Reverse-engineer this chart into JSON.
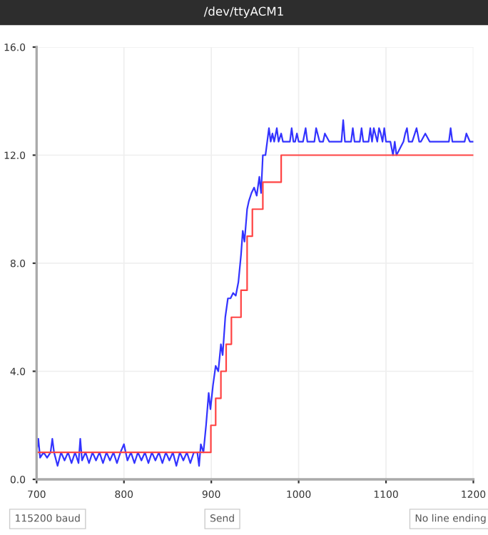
{
  "chart_data": {
    "type": "line",
    "title": "/dev/ttyACM1",
    "xlim": [
      700,
      1200
    ],
    "ylim": [
      0,
      16
    ],
    "xticks": [
      700,
      800,
      900,
      1000,
      1100,
      1200
    ],
    "yticks": [
      {
        "value": 0,
        "label": "0.0"
      },
      {
        "value": 4,
        "label": "4.0"
      },
      {
        "value": 8,
        "label": "8.0"
      },
      {
        "value": 12,
        "label": "12.0"
      },
      {
        "value": 16,
        "label": "16.0"
      }
    ],
    "grid": true,
    "marker": "none",
    "line_style": "solid",
    "annotations": [
      "115200 baud",
      "Send",
      "No line ending"
    ],
    "series": [
      {
        "color": "#3333ff",
        "x": [
          700,
          702,
          704,
          708,
          712,
          716,
          718,
          720,
          724,
          728,
          732,
          736,
          740,
          744,
          748,
          750,
          752,
          756,
          760,
          764,
          768,
          772,
          776,
          780,
          784,
          788,
          792,
          796,
          800,
          804,
          808,
          812,
          816,
          820,
          824,
          828,
          832,
          836,
          840,
          844,
          848,
          852,
          856,
          860,
          864,
          868,
          872,
          876,
          880,
          884,
          886,
          888,
          891,
          894,
          897,
          899,
          902,
          905,
          908,
          911,
          913,
          916,
          919,
          922,
          925,
          928,
          931,
          934,
          936,
          938,
          941,
          943,
          946,
          949,
          952,
          955,
          957,
          959,
          962,
          964,
          966,
          968,
          970,
          972,
          975,
          977,
          980,
          982,
          990,
          992,
          994,
          996,
          998,
          1000,
          1005,
          1008,
          1010,
          1018,
          1020,
          1024,
          1028,
          1030,
          1035,
          1040,
          1045,
          1049,
          1051,
          1053,
          1060,
          1062,
          1064,
          1070,
          1072,
          1074,
          1080,
          1082,
          1084,
          1086,
          1090,
          1092,
          1094,
          1096,
          1098,
          1100,
          1105,
          1108,
          1110,
          1112,
          1120,
          1122,
          1124,
          1126,
          1128,
          1130,
          1135,
          1138,
          1140,
          1145,
          1150,
          1160,
          1170,
          1172,
          1174,
          1176,
          1180,
          1190,
          1192,
          1196,
          1200
        ],
        "values": [
          1.0,
          1.5,
          0.8,
          1.0,
          0.8,
          1.0,
          1.5,
          1.0,
          0.5,
          1.0,
          0.7,
          1.0,
          0.6,
          1.0,
          0.6,
          1.5,
          0.7,
          1.0,
          0.6,
          1.0,
          0.7,
          1.0,
          0.6,
          1.0,
          0.7,
          1.0,
          0.6,
          1.0,
          1.3,
          0.7,
          1.0,
          0.6,
          1.0,
          0.7,
          1.0,
          0.6,
          1.0,
          0.7,
          1.0,
          0.6,
          1.0,
          0.7,
          1.0,
          0.5,
          1.0,
          0.7,
          1.0,
          0.6,
          1.0,
          1.0,
          0.5,
          1.3,
          1.0,
          2.0,
          3.2,
          2.6,
          3.5,
          4.2,
          4.0,
          5.0,
          4.6,
          6.0,
          6.7,
          6.7,
          6.9,
          6.8,
          7.3,
          8.3,
          9.2,
          8.8,
          10.0,
          10.3,
          10.6,
          10.8,
          10.5,
          11.2,
          10.6,
          12.0,
          12.0,
          12.5,
          13.0,
          12.5,
          12.8,
          12.5,
          13.0,
          12.5,
          12.8,
          12.5,
          12.5,
          13.0,
          12.5,
          12.5,
          12.8,
          12.5,
          12.5,
          13.0,
          12.5,
          12.5,
          13.0,
          12.5,
          12.5,
          12.8,
          12.5,
          12.5,
          12.5,
          12.5,
          13.3,
          12.5,
          12.5,
          13.0,
          12.5,
          12.5,
          13.0,
          12.5,
          12.5,
          13.0,
          12.5,
          13.0,
          12.5,
          13.0,
          12.8,
          12.5,
          13.0,
          12.5,
          12.5,
          12.0,
          12.5,
          12.0,
          12.5,
          12.8,
          13.0,
          12.5,
          12.5,
          12.5,
          13.0,
          12.5,
          12.5,
          12.8,
          12.5,
          12.5,
          12.5,
          12.5,
          13.0,
          12.5,
          12.5,
          12.5,
          12.8,
          12.5,
          12.5
        ]
      },
      {
        "color": "#ff4444",
        "type": "step",
        "x": [
          700,
          899.5,
          905,
          911,
          917,
          923,
          934,
          941,
          947,
          959,
          980,
          1200
        ],
        "values": [
          1,
          2,
          3,
          4,
          5,
          6,
          7,
          9,
          10,
          11,
          12,
          12
        ]
      }
    ]
  }
}
